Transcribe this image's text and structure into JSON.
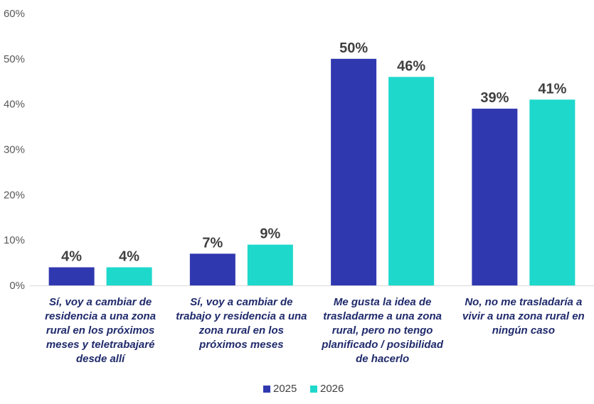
{
  "chart_data": {
    "type": "bar",
    "categories": [
      [
        "Sí, voy a cambiar de",
        "residencia a una zona",
        "rural en los próximos",
        "meses y teletrabajaré",
        "desde allí"
      ],
      [
        "Sí, voy a cambiar de",
        "trabajo y residencia a una",
        "zona rural en los",
        "próximos meses"
      ],
      [
        "Me gusta la idea de",
        "trasladarme a una zona",
        "rural, pero no tengo",
        "planificado / posibilidad",
        "de hacerlo"
      ],
      [
        "No, no me trasladaría a",
        "vivir a una zona rural en",
        "ningún caso"
      ]
    ],
    "series": [
      {
        "name": "2025",
        "color": "#3038b0",
        "values": [
          4,
          7,
          50,
          39
        ],
        "labels": [
          "4%",
          "7%",
          "50%",
          "39%"
        ]
      },
      {
        "name": "2026",
        "color": "#1ed8cc",
        "values": [
          4,
          9,
          46,
          41
        ],
        "labels": [
          "4%",
          "9%",
          "46%",
          "41%"
        ]
      }
    ],
    "ylim": [
      0,
      60
    ],
    "yticks": [
      "0%",
      "10%",
      "20%",
      "30%",
      "40%",
      "50%",
      "60%"
    ],
    "ytick_values": [
      0,
      10,
      20,
      30,
      40,
      50,
      60
    ],
    "grid": false,
    "legend_position": "bottom",
    "title": "",
    "xlabel": "",
    "ylabel": ""
  }
}
